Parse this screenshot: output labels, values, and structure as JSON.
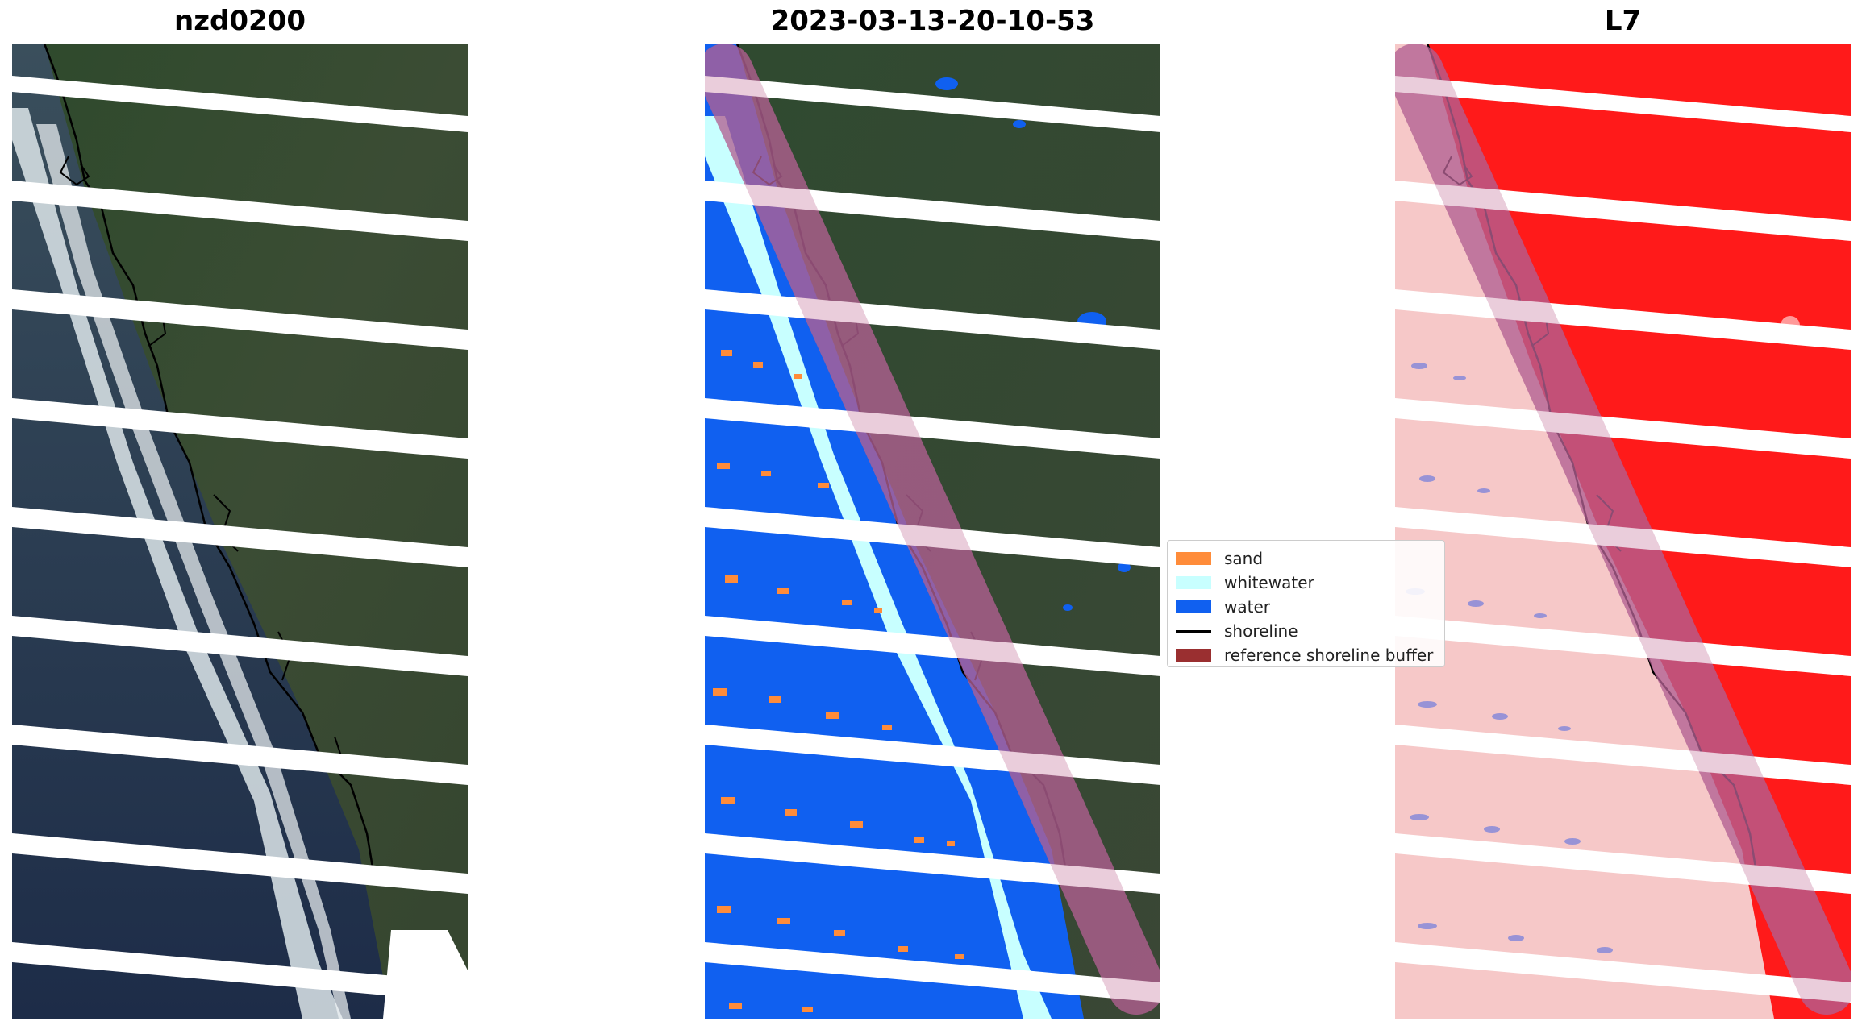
{
  "panels": [
    {
      "title": "nzd0200"
    },
    {
      "title": "2023-03-13-20-10-53"
    },
    {
      "title": "L7"
    }
  ],
  "legend": {
    "items": [
      {
        "label": "sand",
        "color": "#ff8c3a",
        "kind": "patch"
      },
      {
        "label": "whitewater",
        "color": "#c8ffff",
        "kind": "patch"
      },
      {
        "label": "water",
        "color": "#1060f0",
        "kind": "patch"
      },
      {
        "label": "shoreline",
        "color": "#000000",
        "kind": "line"
      },
      {
        "label": "reference shoreline buffer",
        "color": "#9a2f30",
        "kind": "patch"
      }
    ]
  },
  "colors": {
    "land": "#3a4a30",
    "ocean": "#2a3a55",
    "surf": "#e8eef0",
    "class_water": "#1060f0",
    "class_white": "#c8ffff",
    "class_sand": "#ff8c3a",
    "index_red": "#ff1a1a",
    "index_pink": "#f6c8c8",
    "buffer": "#8b1f6a"
  }
}
